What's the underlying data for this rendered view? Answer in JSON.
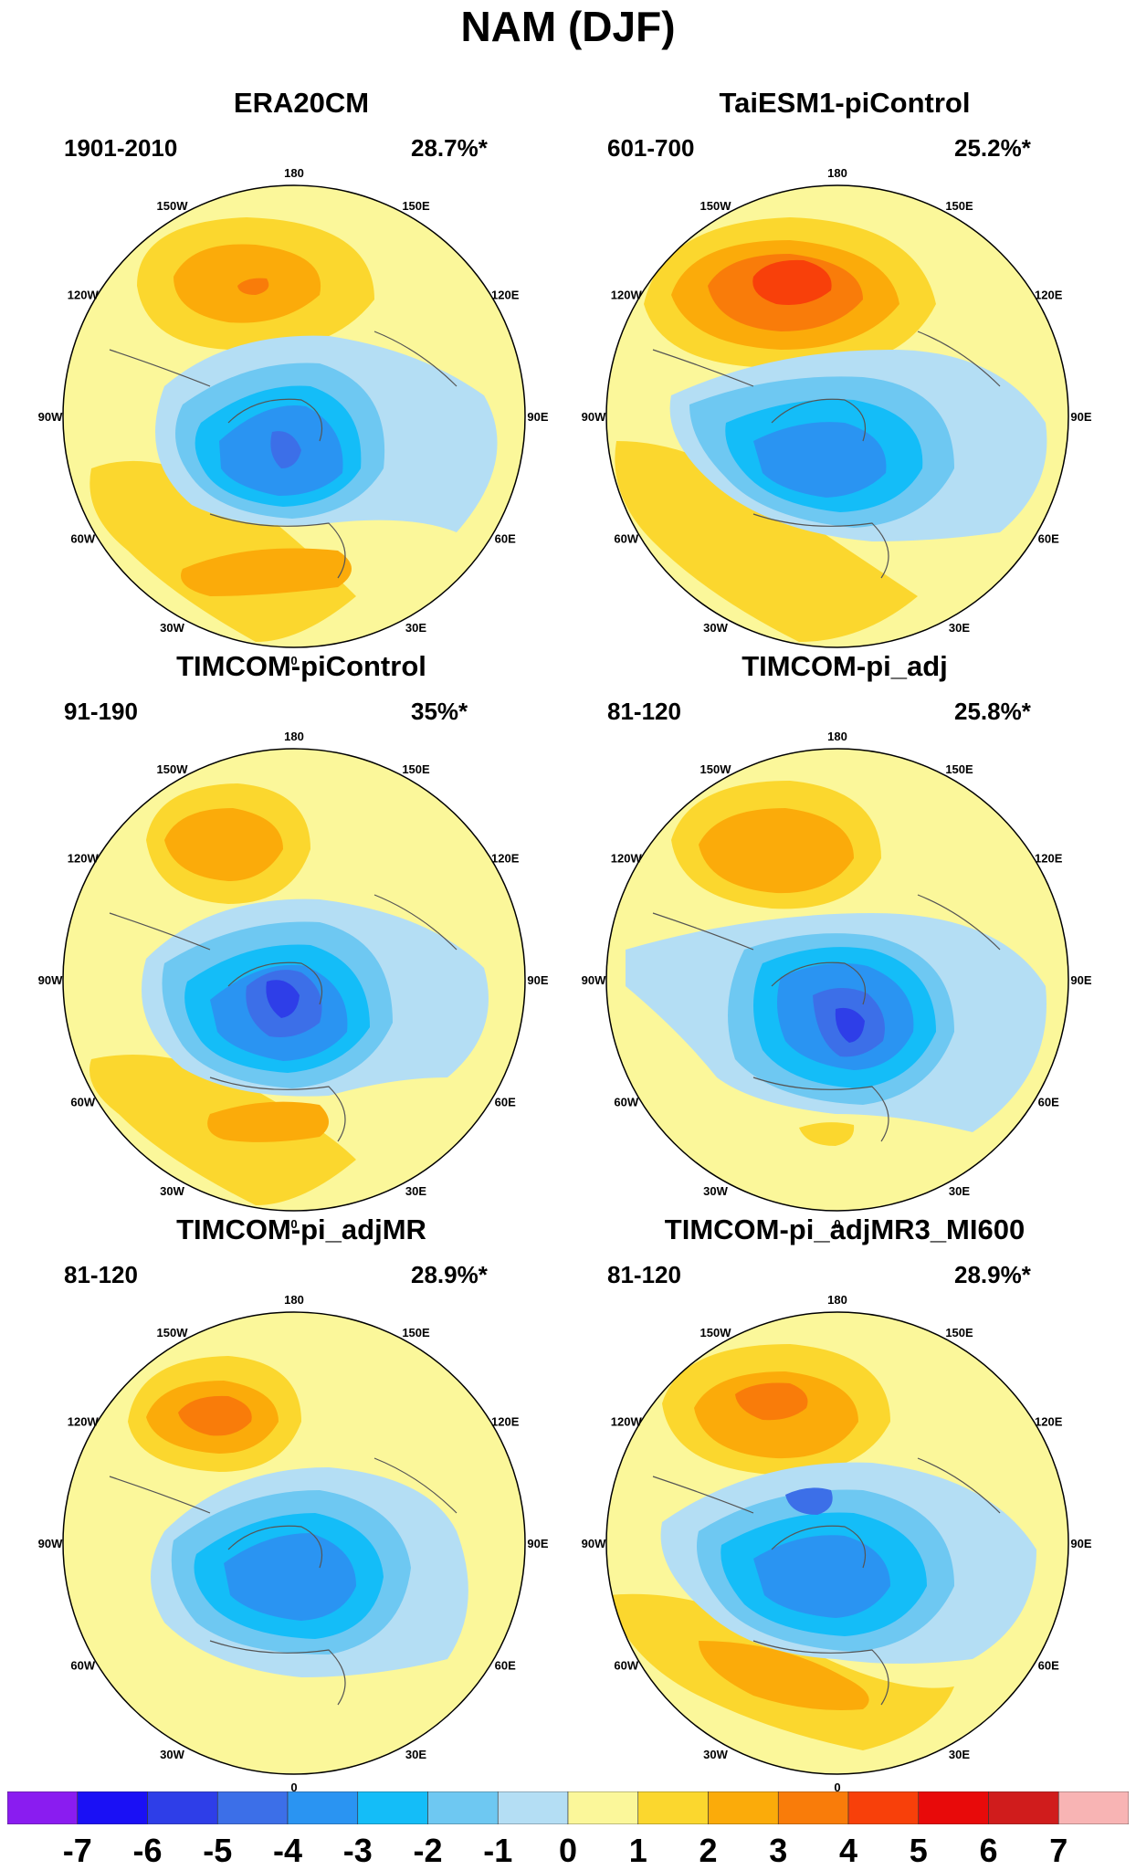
{
  "title": "NAM (DJF)",
  "panels": [
    {
      "title": "ERA20CM",
      "period": "1901-2010",
      "variance": "28.7%*"
    },
    {
      "title": "TaiESM1-piControl",
      "period": "601-700",
      "variance": "25.2%*"
    },
    {
      "title": "TIMCOM-piControl",
      "period": "91-190",
      "variance": "35%*"
    },
    {
      "title": "TIMCOM-pi_adj",
      "period": "81-120",
      "variance": "25.8%*"
    },
    {
      "title": "TIMCOM-pi_adjMR",
      "period": "81-120",
      "variance": "28.9%*"
    },
    {
      "title": "TIMCOM-pi_adjMR3_MI600",
      "period": "81-120",
      "variance": "28.9%*"
    }
  ],
  "longitude_labels": [
    "180",
    "150E",
    "120E",
    "90E",
    "60E",
    "30E",
    "0",
    "30W",
    "60W",
    "90W",
    "120W",
    "150W"
  ],
  "colorbar": {
    "labels": [
      "-7",
      "-6",
      "-5",
      "-4",
      "-3",
      "-2",
      "-1",
      "0",
      "1",
      "2",
      "3",
      "4",
      "5",
      "6",
      "7"
    ],
    "colors": [
      "#8a1cf0",
      "#1a10f5",
      "#2e3ee8",
      "#3c6fe8",
      "#2a94f2",
      "#14bdf8",
      "#6ec8f2",
      "#b4def4",
      "#fbf79a",
      "#fbd72e",
      "#fbab0a",
      "#f97c0a",
      "#f8400a",
      "#e80a0a",
      "#d01c1c",
      "#f8b4b4"
    ]
  }
}
